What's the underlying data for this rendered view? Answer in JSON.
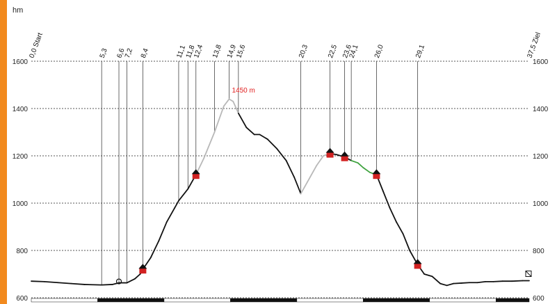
{
  "colors": {
    "accent": "#f28a1e",
    "profile": "#111111",
    "descent_segment": "#b8b8b8",
    "green_segment": "#3fa33f",
    "highlight": "#e02020",
    "hut": "#d22222"
  },
  "chart_data": {
    "type": "line",
    "ylabel": "hm",
    "ylim": [
      600,
      1600
    ],
    "xlim": [
      0,
      37.5
    ],
    "yticks": [
      600,
      800,
      1000,
      1200,
      1400,
      1600
    ],
    "ytick_labels_left": [
      "600",
      "800",
      "1000",
      "1200",
      "1400",
      "1600"
    ],
    "ytick_labels_right": [
      "600",
      "800",
      "1000",
      "1200",
      "1400",
      "1600"
    ],
    "grid": true,
    "waypoints": [
      {
        "km": 0.0,
        "label": "0,0 Start"
      },
      {
        "km": 5.3,
        "label": "5,3"
      },
      {
        "km": 6.6,
        "label": "6,6"
      },
      {
        "km": 7.2,
        "label": "7,2"
      },
      {
        "km": 8.4,
        "label": "8,4"
      },
      {
        "km": 11.1,
        "label": "11,1"
      },
      {
        "km": 11.8,
        "label": "11,8"
      },
      {
        "km": 12.4,
        "label": "12,4"
      },
      {
        "km": 13.8,
        "label": "13,8"
      },
      {
        "km": 14.9,
        "label": "14,9"
      },
      {
        "km": 15.6,
        "label": "15,6"
      },
      {
        "km": 20.3,
        "label": "20,3"
      },
      {
        "km": 22.5,
        "label": "22,5"
      },
      {
        "km": 23.6,
        "label": "23,6"
      },
      {
        "km": 24.1,
        "label": "24,1"
      },
      {
        "km": 26.0,
        "label": "26,0"
      },
      {
        "km": 29.1,
        "label": "29,1"
      },
      {
        "km": 37.5,
        "label": "37,5 Ziel"
      }
    ],
    "annotation": {
      "km": 14.9,
      "y": 1450,
      "text": "1450 m"
    },
    "series": [
      {
        "x": [
          0,
          1,
          2,
          3,
          4,
          5.3,
          6.1,
          6.6,
          7.2,
          7.8,
          8.2,
          8.4,
          9.0,
          9.6,
          10.2,
          10.8,
          11.1,
          11.8,
          12.4,
          13.0,
          13.8,
          14.5,
          14.9,
          15.2,
          15.6,
          16.2,
          16.8,
          17.2,
          17.8,
          18.5,
          19.2,
          19.8,
          20.3,
          20.8,
          21.5,
          22.0,
          22.5,
          23.0,
          23.6,
          24.1,
          24.6,
          25.0,
          25.5,
          26.0,
          26.5,
          27.0,
          27.5,
          28.0,
          28.5,
          29.1,
          29.6,
          30.2,
          30.8,
          31.3,
          31.8,
          32.4,
          33.0,
          33.6,
          34.2,
          34.8,
          35.5,
          36.2,
          37.0,
          37.5
        ],
        "y": [
          670,
          668,
          664,
          660,
          656,
          654,
          656,
          663,
          663,
          680,
          700,
          720,
          770,
          840,
          920,
          980,
          1010,
          1060,
          1120,
          1190,
          1300,
          1410,
          1440,
          1430,
          1380,
          1320,
          1290,
          1290,
          1270,
          1230,
          1180,
          1110,
          1040,
          1090,
          1160,
          1200,
          1210,
          1205,
          1195,
          1180,
          1170,
          1150,
          1130,
          1120,
          1050,
          980,
          920,
          870,
          800,
          740,
          700,
          690,
          660,
          652,
          660,
          662,
          664,
          664,
          668,
          668,
          670,
          670,
          672,
          672
        ]
      }
    ],
    "huts_km": [
      8.4,
      12.4,
      22.5,
      23.6,
      26.0,
      29.1
    ]
  }
}
